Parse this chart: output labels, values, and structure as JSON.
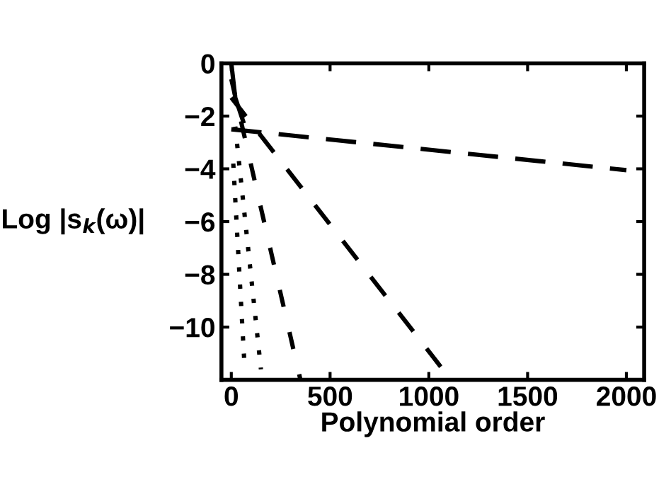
{
  "chart_data": {
    "type": "line",
    "xlabel": "Polynomial order",
    "ylabel": "Log |s$_{k}$(ω)|",
    "xlim": [
      -50,
      2090
    ],
    "ylim": [
      -12,
      0
    ],
    "xticks": [
      0,
      500,
      1000,
      1500,
      2000
    ],
    "yticks": [
      {
        "value": 0,
        "label": "0"
      },
      {
        "value": -2,
        "label": "−2"
      },
      {
        "value": -4,
        "label": "−4"
      },
      {
        "value": -6,
        "label": "−6"
      },
      {
        "value": -8,
        "label": "−8"
      },
      {
        "value": -10,
        "label": "−10"
      }
    ],
    "grid": false,
    "legend": false,
    "series": [
      {
        "color": "#000000",
        "line_style": "dashed",
        "x": [
          0,
          2000
        ],
        "values": [
          -2.5,
          -4.05
        ]
      },
      {
        "color": "#000000",
        "line_style": "dashed",
        "x": [
          0,
          1060
        ],
        "values": [
          -1.3,
          -11.5
        ]
      },
      {
        "color": "#000000",
        "line_style": "dashed",
        "x": [
          0,
          350
        ],
        "values": [
          -0.6,
          -12
        ]
      },
      {
        "color": "#000000",
        "line_style": "dotted",
        "x": [
          20,
          150
        ],
        "values": [
          -2.4,
          -11.6
        ]
      },
      {
        "color": "#000000",
        "line_style": "dotted",
        "x": [
          10,
          65
        ],
        "values": [
          -3.8,
          -11.2
        ]
      },
      {
        "color": "#000000",
        "line_style": "solid",
        "x": [
          0,
          20,
          60
        ],
        "values": [
          0,
          -1.3,
          -2.2
        ]
      }
    ]
  }
}
